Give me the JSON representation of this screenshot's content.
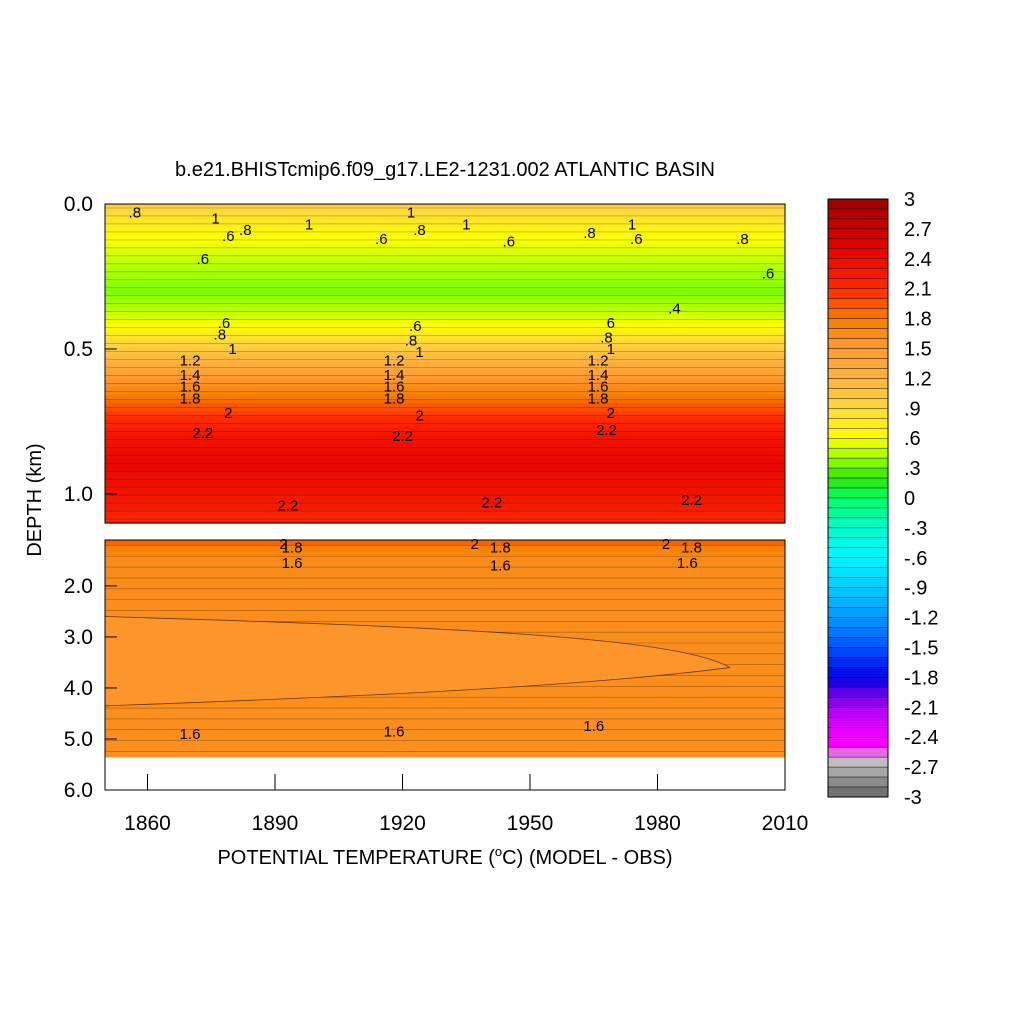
{
  "chart_data": {
    "type": "heatmap",
    "title": "b.e21.BHISTcmip6.f09_g17.LE2-1231.002 ATLANTIC BASIN",
    "xlabel": "POTENTIAL TEMPERATURE (",
    "xlabel_degree": "o",
    "xlabel_unit_tail": "C) (MODEL - OBS)",
    "ylabel": "DEPTH (km)",
    "xlim": [
      1850,
      2010
    ],
    "x_ticks": [
      "1860",
      "1890",
      "1920",
      "1950",
      "1980",
      "2010"
    ],
    "x_tick_values": [
      1860,
      1890,
      1920,
      1950,
      1980,
      2010
    ],
    "upper_panel": {
      "ylim": [
        0.0,
        1.1
      ],
      "y_ticks": [
        "0.0",
        "0.5",
        "1.0"
      ],
      "y_tick_values": [
        0.0,
        0.5,
        1.0
      ],
      "profile": [
        {
          "depth": 0.0,
          "value": 1.0
        },
        {
          "depth": 0.05,
          "value": 0.8
        },
        {
          "depth": 0.12,
          "value": 0.6
        },
        {
          "depth": 0.22,
          "value": 0.45
        },
        {
          "depth": 0.3,
          "value": 0.35
        },
        {
          "depth": 0.36,
          "value": 0.45
        },
        {
          "depth": 0.42,
          "value": 0.6
        },
        {
          "depth": 0.5,
          "value": 1.0
        },
        {
          "depth": 0.58,
          "value": 1.4
        },
        {
          "depth": 0.66,
          "value": 1.8
        },
        {
          "depth": 0.74,
          "value": 2.1
        },
        {
          "depth": 0.8,
          "value": 2.3
        },
        {
          "depth": 0.9,
          "value": 2.45
        },
        {
          "depth": 1.0,
          "value": 2.3
        },
        {
          "depth": 1.1,
          "value": 2.15
        }
      ],
      "contour_labels": [
        {
          "text": ".8",
          "year": 1857,
          "depth": 0.03
        },
        {
          "text": "1",
          "year": 1876,
          "depth": 0.05
        },
        {
          "text": ".6",
          "year": 1879,
          "depth": 0.11
        },
        {
          "text": ".8",
          "year": 1883,
          "depth": 0.09
        },
        {
          "text": "1",
          "year": 1898,
          "depth": 0.07
        },
        {
          "text": "1",
          "year": 1922,
          "depth": 0.03
        },
        {
          "text": ".8",
          "year": 1924,
          "depth": 0.09
        },
        {
          "text": ".6",
          "year": 1915,
          "depth": 0.12
        },
        {
          "text": "1",
          "year": 1935,
          "depth": 0.07
        },
        {
          "text": ".6",
          "year": 1945,
          "depth": 0.13
        },
        {
          "text": ".8",
          "year": 1964,
          "depth": 0.1
        },
        {
          "text": "1",
          "year": 1974,
          "depth": 0.07
        },
        {
          "text": ".6",
          "year": 1975,
          "depth": 0.12
        },
        {
          "text": ".8",
          "year": 2000,
          "depth": 0.12
        },
        {
          "text": ".6",
          "year": 1873,
          "depth": 0.19
        },
        {
          "text": ".6",
          "year": 2006,
          "depth": 0.24
        },
        {
          "text": ".4",
          "year": 1984,
          "depth": 0.36
        },
        {
          "text": ".6",
          "year": 1878,
          "depth": 0.41
        },
        {
          "text": ".8",
          "year": 1877,
          "depth": 0.45
        },
        {
          "text": "1",
          "year": 1880,
          "depth": 0.5
        },
        {
          "text": "1.2",
          "year": 1870,
          "depth": 0.54
        },
        {
          "text": "1.4",
          "year": 1870,
          "depth": 0.59
        },
        {
          "text": "1.6",
          "year": 1870,
          "depth": 0.63
        },
        {
          "text": "1.8",
          "year": 1870,
          "depth": 0.67
        },
        {
          "text": "2",
          "year": 1879,
          "depth": 0.72
        },
        {
          "text": "2.2",
          "year": 1873,
          "depth": 0.79
        },
        {
          "text": ".6",
          "year": 1923,
          "depth": 0.42
        },
        {
          "text": ".8",
          "year": 1922,
          "depth": 0.47
        },
        {
          "text": "1",
          "year": 1924,
          "depth": 0.51
        },
        {
          "text": "1.2",
          "year": 1918,
          "depth": 0.54
        },
        {
          "text": "1.4",
          "year": 1918,
          "depth": 0.59
        },
        {
          "text": "1.6",
          "year": 1918,
          "depth": 0.63
        },
        {
          "text": "1.8",
          "year": 1918,
          "depth": 0.67
        },
        {
          "text": "2",
          "year": 1924,
          "depth": 0.73
        },
        {
          "text": "2.2",
          "year": 1920,
          "depth": 0.8
        },
        {
          "text": "6",
          "year": 1969,
          "depth": 0.41
        },
        {
          "text": ".8",
          "year": 1968,
          "depth": 0.46
        },
        {
          "text": "1",
          "year": 1969,
          "depth": 0.5
        },
        {
          "text": "1.2",
          "year": 1966,
          "depth": 0.54
        },
        {
          "text": "1.4",
          "year": 1966,
          "depth": 0.59
        },
        {
          "text": "1.6",
          "year": 1966,
          "depth": 0.63
        },
        {
          "text": "1.8",
          "year": 1966,
          "depth": 0.67
        },
        {
          "text": "2",
          "year": 1969,
          "depth": 0.72
        },
        {
          "text": "2.2",
          "year": 1968,
          "depth": 0.78
        },
        {
          "text": "2.2",
          "year": 1893,
          "depth": 1.04
        },
        {
          "text": "2.2",
          "year": 1941,
          "depth": 1.03
        },
        {
          "text": "2.2",
          "year": 1988,
          "depth": 1.02
        }
      ]
    },
    "lower_panel": {
      "ylim": [
        1.1,
        6.0
      ],
      "y_ticks": [
        "2.0",
        "3.0",
        "4.0",
        "5.0",
        "6.0"
      ],
      "y_tick_values": [
        2.0,
        3.0,
        4.0,
        5.0,
        6.0
      ],
      "valid_max_depth": 5.35,
      "profile": [
        {
          "depth": 1.1,
          "value": 2.0
        },
        {
          "depth": 1.2,
          "value": 1.8
        },
        {
          "depth": 1.5,
          "value": 1.65
        },
        {
          "depth": 5.35,
          "value": 1.62
        }
      ],
      "contour_labels": [
        {
          "text": "2",
          "year": 1892,
          "depth": 1.18
        },
        {
          "text": "1.8",
          "year": 1894,
          "depth": 1.25
        },
        {
          "text": "1.6",
          "year": 1894,
          "depth": 1.55
        },
        {
          "text": "2",
          "year": 1937,
          "depth": 1.18
        },
        {
          "text": "1.8",
          "year": 1943,
          "depth": 1.25
        },
        {
          "text": "1.6",
          "year": 1943,
          "depth": 1.6
        },
        {
          "text": "2",
          "year": 1982,
          "depth": 1.18
        },
        {
          "text": "1.8",
          "year": 1988,
          "depth": 1.25
        },
        {
          "text": "1.6",
          "year": 1987,
          "depth": 1.55
        },
        {
          "text": "1.6",
          "year": 1870,
          "depth": 4.9
        },
        {
          "text": "1.6",
          "year": 1918,
          "depth": 4.85
        },
        {
          "text": "1.6",
          "year": 1965,
          "depth": 4.75
        }
      ]
    },
    "colorbar": {
      "min": -3,
      "max": 3,
      "labels": [
        "3",
        "2.7",
        "2.4",
        "2.1",
        "1.8",
        "1.5",
        "1.2",
        ".9",
        ".6",
        ".3",
        "0",
        "-.3",
        "-.6",
        "-.9",
        "-1.2",
        "-1.5",
        "-1.8",
        "-2.1",
        "-2.4",
        "-2.7",
        "-3"
      ],
      "label_values": [
        3,
        2.7,
        2.4,
        2.1,
        1.8,
        1.5,
        1.2,
        0.9,
        0.6,
        0.3,
        0,
        -0.3,
        -0.6,
        -0.9,
        -1.2,
        -1.5,
        -1.8,
        -2.1,
        -2.4,
        -2.7,
        -3
      ],
      "anchors": [
        {
          "value": 3.0,
          "color": "#9e0000"
        },
        {
          "value": 2.5,
          "color": "#e60000"
        },
        {
          "value": 2.1,
          "color": "#ff2a00"
        },
        {
          "value": 1.8,
          "color": "#f57f00"
        },
        {
          "value": 1.5,
          "color": "#ff9a33"
        },
        {
          "value": 1.2,
          "color": "#ffb340"
        },
        {
          "value": 0.9,
          "color": "#ffd740"
        },
        {
          "value": 0.6,
          "color": "#ffff00"
        },
        {
          "value": 0.4,
          "color": "#99ff00"
        },
        {
          "value": 0.2,
          "color": "#33e600"
        },
        {
          "value": 0.0,
          "color": "#00ff66"
        },
        {
          "value": -0.3,
          "color": "#00ffcc"
        },
        {
          "value": -0.6,
          "color": "#00f5ff"
        },
        {
          "value": -0.9,
          "color": "#00ccff"
        },
        {
          "value": -1.2,
          "color": "#0099ff"
        },
        {
          "value": -1.5,
          "color": "#0055ff"
        },
        {
          "value": -1.8,
          "color": "#0000e6"
        },
        {
          "value": -2.0,
          "color": "#7a00e6"
        },
        {
          "value": -2.2,
          "color": "#cc00ff"
        },
        {
          "value": -2.5,
          "color": "#ff00ff"
        },
        {
          "value": -2.6,
          "color": "#cccccc"
        },
        {
          "value": -3.0,
          "color": "#666666"
        }
      ]
    }
  }
}
